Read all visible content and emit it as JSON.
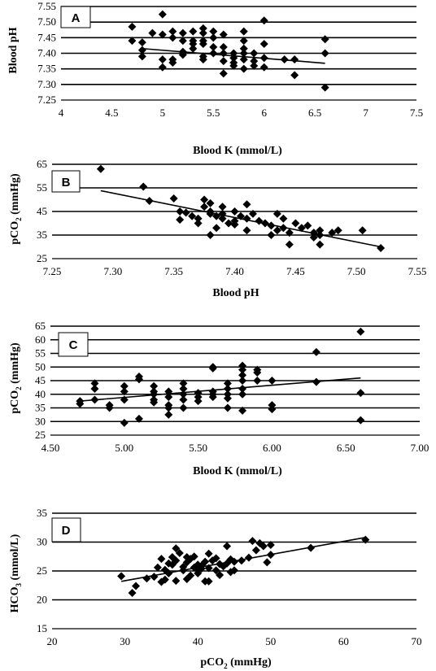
{
  "figure": {
    "marker_color": "#000000",
    "line_color": "#000000"
  },
  "chart_data": [
    {
      "type": "scatter",
      "panel_label": "A",
      "xlabel": "Blood K (mmol/L)",
      "ylabel": "Blood pH",
      "xlim": [
        4,
        7.5
      ],
      "ylim": [
        7.25,
        7.55
      ],
      "x_ticks": [
        "4",
        "4.5",
        "5",
        "5.5",
        "6",
        "6.5",
        "7",
        "7.5"
      ],
      "y_ticks": [
        "7.25",
        "7.30",
        "7.35",
        "7.40",
        "7.45",
        "7.50",
        "7.55"
      ],
      "grid": "horizontal",
      "trendline": [
        [
          4.8,
          7.415
        ],
        [
          6.6,
          7.368
        ]
      ],
      "points": [
        [
          4.7,
          7.485
        ],
        [
          4.7,
          7.44
        ],
        [
          4.8,
          7.435
        ],
        [
          4.8,
          7.41
        ],
        [
          4.8,
          7.39
        ],
        [
          4.9,
          7.465
        ],
        [
          5.0,
          7.525
        ],
        [
          5.0,
          7.46
        ],
        [
          5.0,
          7.38
        ],
        [
          5.0,
          7.355
        ],
        [
          5.1,
          7.47
        ],
        [
          5.1,
          7.45
        ],
        [
          5.1,
          7.38
        ],
        [
          5.1,
          7.37
        ],
        [
          5.2,
          7.465
        ],
        [
          5.2,
          7.44
        ],
        [
          5.2,
          7.405
        ],
        [
          5.2,
          7.395
        ],
        [
          5.3,
          7.47
        ],
        [
          5.3,
          7.44
        ],
        [
          5.3,
          7.43
        ],
        [
          5.3,
          7.415
        ],
        [
          5.4,
          7.48
        ],
        [
          5.4,
          7.465
        ],
        [
          5.4,
          7.44
        ],
        [
          5.4,
          7.43
        ],
        [
          5.4,
          7.39
        ],
        [
          5.4,
          7.38
        ],
        [
          5.5,
          7.47
        ],
        [
          5.5,
          7.45
        ],
        [
          5.5,
          7.42
        ],
        [
          5.5,
          7.4
        ],
        [
          5.6,
          7.46
        ],
        [
          5.6,
          7.42
        ],
        [
          5.6,
          7.4
        ],
        [
          5.6,
          7.375
        ],
        [
          5.6,
          7.335
        ],
        [
          5.7,
          7.4
        ],
        [
          5.7,
          7.385
        ],
        [
          5.7,
          7.37
        ],
        [
          5.7,
          7.36
        ],
        [
          5.8,
          7.47
        ],
        [
          5.8,
          7.44
        ],
        [
          5.8,
          7.415
        ],
        [
          5.8,
          7.4
        ],
        [
          5.8,
          7.38
        ],
        [
          5.8,
          7.35
        ],
        [
          5.9,
          7.4
        ],
        [
          5.9,
          7.375
        ],
        [
          5.9,
          7.36
        ],
        [
          6.0,
          7.505
        ],
        [
          6.0,
          7.43
        ],
        [
          6.0,
          7.385
        ],
        [
          6.0,
          7.355
        ],
        [
          6.2,
          7.38
        ],
        [
          6.3,
          7.38
        ],
        [
          6.3,
          7.33
        ],
        [
          6.6,
          7.445
        ],
        [
          6.6,
          7.4
        ],
        [
          6.6,
          7.29
        ]
      ]
    },
    {
      "type": "scatter",
      "panel_label": "B",
      "xlabel": "Blood pH",
      "ylabel": "pCO2 (mmHg)",
      "xlim": [
        7.25,
        7.55
      ],
      "ylim": [
        25,
        65
      ],
      "x_ticks": [
        "7.25",
        "7.30",
        "7.35",
        "7.40",
        "7.45",
        "7.50",
        "7.55"
      ],
      "y_ticks": [
        "25",
        "35",
        "45",
        "55",
        "65"
      ],
      "grid": "horizontal",
      "trendline": [
        [
          7.29,
          53.8
        ],
        [
          7.52,
          30.0
        ]
      ],
      "points": [
        [
          7.29,
          63
        ],
        [
          7.325,
          55.5
        ],
        [
          7.33,
          49.5
        ],
        [
          7.35,
          50.5
        ],
        [
          7.355,
          45
        ],
        [
          7.355,
          41.5
        ],
        [
          7.36,
          44.5
        ],
        [
          7.365,
          43
        ],
        [
          7.37,
          42
        ],
        [
          7.37,
          40
        ],
        [
          7.375,
          50
        ],
        [
          7.375,
          47
        ],
        [
          7.38,
          48.5
        ],
        [
          7.38,
          45
        ],
        [
          7.38,
          44
        ],
        [
          7.38,
          35
        ],
        [
          7.385,
          43
        ],
        [
          7.385,
          38
        ],
        [
          7.39,
          47
        ],
        [
          7.39,
          44
        ],
        [
          7.39,
          42
        ],
        [
          7.395,
          40
        ],
        [
          7.4,
          45
        ],
        [
          7.4,
          41
        ],
        [
          7.4,
          39.5
        ],
        [
          7.405,
          43
        ],
        [
          7.41,
          48
        ],
        [
          7.41,
          42
        ],
        [
          7.41,
          37
        ],
        [
          7.415,
          44
        ],
        [
          7.42,
          41
        ],
        [
          7.425,
          40
        ],
        [
          7.43,
          39
        ],
        [
          7.43,
          35
        ],
        [
          7.435,
          44
        ],
        [
          7.435,
          37
        ],
        [
          7.44,
          42
        ],
        [
          7.44,
          38
        ],
        [
          7.445,
          36
        ],
        [
          7.445,
          31
        ],
        [
          7.45,
          40
        ],
        [
          7.455,
          38
        ],
        [
          7.46,
          39
        ],
        [
          7.465,
          36
        ],
        [
          7.465,
          34
        ],
        [
          7.47,
          37
        ],
        [
          7.47,
          35
        ],
        [
          7.47,
          31
        ],
        [
          7.48,
          36
        ],
        [
          7.485,
          37
        ],
        [
          7.505,
          37
        ],
        [
          7.52,
          29.5
        ]
      ]
    },
    {
      "type": "scatter",
      "panel_label": "C",
      "xlabel": "Blood K (mmol/L)",
      "ylabel": "pCO2 (mmHg)",
      "xlim": [
        4.5,
        7.0
      ],
      "ylim": [
        25,
        65
      ],
      "x_ticks": [
        "4.50",
        "5.00",
        "5.50",
        "6.00",
        "6.50",
        "7.00"
      ],
      "y_ticks": [
        "25",
        "30",
        "35",
        "40",
        "45",
        "50",
        "55",
        "60",
        "65"
      ],
      "grid": "horizontal",
      "trendline": [
        [
          4.7,
          37.5
        ],
        [
          6.6,
          46
        ]
      ],
      "points": [
        [
          4.7,
          37.5
        ],
        [
          4.7,
          36.5
        ],
        [
          4.8,
          44
        ],
        [
          4.8,
          42
        ],
        [
          4.8,
          38
        ],
        [
          4.9,
          36
        ],
        [
          4.9,
          35
        ],
        [
          5.0,
          43
        ],
        [
          5.0,
          41
        ],
        [
          5.0,
          38
        ],
        [
          5.0,
          29.5
        ],
        [
          5.1,
          46.5
        ],
        [
          5.1,
          45.5
        ],
        [
          5.1,
          31
        ],
        [
          5.2,
          43
        ],
        [
          5.2,
          41
        ],
        [
          5.2,
          40
        ],
        [
          5.2,
          38
        ],
        [
          5.2,
          37
        ],
        [
          5.3,
          41
        ],
        [
          5.3,
          39
        ],
        [
          5.3,
          36
        ],
        [
          5.3,
          35
        ],
        [
          5.3,
          32.5
        ],
        [
          5.4,
          44
        ],
        [
          5.4,
          42
        ],
        [
          5.4,
          40
        ],
        [
          5.4,
          38
        ],
        [
          5.4,
          35
        ],
        [
          5.5,
          40.5
        ],
        [
          5.5,
          39
        ],
        [
          5.5,
          37.5
        ],
        [
          5.6,
          50
        ],
        [
          5.6,
          49.5
        ],
        [
          5.6,
          41
        ],
        [
          5.6,
          40
        ],
        [
          5.6,
          39
        ],
        [
          5.7,
          44
        ],
        [
          5.7,
          42
        ],
        [
          5.7,
          40
        ],
        [
          5.7,
          38.5
        ],
        [
          5.7,
          35
        ],
        [
          5.8,
          50.5
        ],
        [
          5.8,
          49
        ],
        [
          5.8,
          47
        ],
        [
          5.8,
          45
        ],
        [
          5.8,
          42
        ],
        [
          5.8,
          40
        ],
        [
          5.8,
          34
        ],
        [
          5.9,
          49
        ],
        [
          5.9,
          48
        ],
        [
          5.9,
          45
        ],
        [
          6.0,
          45
        ],
        [
          6.0,
          36
        ],
        [
          6.0,
          34.5
        ],
        [
          6.3,
          55.5
        ],
        [
          6.3,
          44.5
        ],
        [
          6.6,
          63
        ],
        [
          6.6,
          40.5
        ],
        [
          6.6,
          30.5
        ]
      ]
    },
    {
      "type": "scatter",
      "panel_label": "D",
      "xlabel": "pCO2 (mmHg)",
      "ylabel": "HCO3 (mmol/L)",
      "xlim": [
        20,
        70
      ],
      "ylim": [
        15,
        35
      ],
      "x_ticks": [
        "20",
        "30",
        "40",
        "50",
        "60",
        "70"
      ],
      "y_ticks": [
        "15",
        "20",
        "25",
        "30",
        "35"
      ],
      "grid": "horizontal",
      "trendline": [
        [
          29.5,
          23.2
        ],
        [
          63,
          30.8
        ]
      ],
      "points": [
        [
          29.5,
          24.1
        ],
        [
          31,
          21.2
        ],
        [
          31.5,
          22.4
        ],
        [
          33,
          23.7
        ],
        [
          34,
          24
        ],
        [
          34.5,
          25.6
        ],
        [
          35,
          27.1
        ],
        [
          35,
          23.1
        ],
        [
          35.5,
          25.2
        ],
        [
          35.5,
          23.5
        ],
        [
          36,
          26.3
        ],
        [
          36,
          24.6
        ],
        [
          36.5,
          27.4
        ],
        [
          36.5,
          26.1
        ],
        [
          37,
          28.9
        ],
        [
          37,
          26.8
        ],
        [
          37,
          23.3
        ],
        [
          37.5,
          28.1
        ],
        [
          38,
          25.7
        ],
        [
          38,
          25.1
        ],
        [
          38.5,
          27.4
        ],
        [
          38.5,
          26.5
        ],
        [
          38.5,
          23.6
        ],
        [
          39,
          27.1
        ],
        [
          39,
          24.2
        ],
        [
          39.5,
          27.5
        ],
        [
          39.5,
          25.6
        ],
        [
          40,
          26.1
        ],
        [
          40,
          25.3
        ],
        [
          40,
          24.6
        ],
        [
          40.5,
          25.9
        ],
        [
          40.5,
          25.4
        ],
        [
          41,
          23.2
        ],
        [
          41,
          26.6
        ],
        [
          41.5,
          28
        ],
        [
          41.5,
          25.5
        ],
        [
          41.5,
          23.2
        ],
        [
          42,
          26.8
        ],
        [
          42.5,
          27.2
        ],
        [
          42.5,
          25.1
        ],
        [
          43,
          26.2
        ],
        [
          43,
          24.3
        ],
        [
          43.5,
          25.8
        ],
        [
          44,
          29.3
        ],
        [
          44,
          26.3
        ],
        [
          44.5,
          27
        ],
        [
          44.5,
          24.8
        ],
        [
          45,
          25.1
        ],
        [
          45,
          26.6
        ],
        [
          46,
          26.8
        ],
        [
          47,
          27.3
        ],
        [
          47.5,
          30.2
        ],
        [
          48,
          28.6
        ],
        [
          48.5,
          29.8
        ],
        [
          49,
          29.3
        ],
        [
          49.5,
          26.5
        ],
        [
          50,
          29.5
        ],
        [
          50,
          27.8
        ],
        [
          55.5,
          29
        ],
        [
          63,
          30.4
        ]
      ]
    }
  ]
}
